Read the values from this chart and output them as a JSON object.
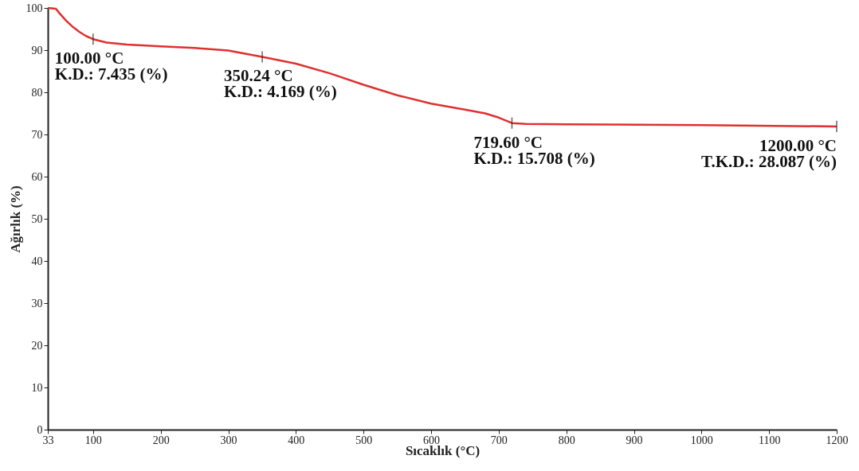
{
  "chart_data": {
    "type": "line",
    "xlabel": "Sıcaklık (°C)",
    "ylabel": "Ağırlık (%)",
    "x": [
      33,
      45,
      50,
      60,
      70,
      80,
      90,
      100,
      120,
      150,
      200,
      250,
      300,
      350.24,
      400,
      450,
      500,
      550,
      600,
      650,
      680,
      700,
      719.6,
      740,
      800,
      1000,
      1200
    ],
    "series": [
      {
        "color": "#e03030",
        "values": [
          100,
          99.8,
          98.8,
          97,
          95.5,
          94.3,
          93.3,
          92.6,
          91.8,
          91.3,
          90.9,
          90.5,
          89.9,
          88.4,
          86.8,
          84.5,
          81.8,
          79.3,
          77.3,
          75.9,
          75.0,
          74.0,
          72.7,
          72.5,
          72.4,
          72.2,
          71.9
        ]
      }
    ],
    "xlim": [
      33,
      1200
    ],
    "xticks": [
      33,
      100,
      200,
      300,
      400,
      500,
      600,
      700,
      800,
      900,
      1000,
      1100,
      1200
    ],
    "ylim": [
      0,
      100
    ],
    "yticks": [
      0,
      10,
      20,
      30,
      40,
      50,
      60,
      70,
      80,
      90,
      100
    ],
    "grid": false,
    "marker": "none",
    "line_style": "solid",
    "annotations": [
      {
        "text": "100.00 °C\nK.D.: 7.435 (%)",
        "x": 100,
        "y": 92.6
      },
      {
        "text": "350.24 °C\nK.D.: 4.169 (%)",
        "x": 350.24,
        "y": 88.4
      },
      {
        "text": "719.60 °C\nK.D.: 15.708 (%)",
        "x": 719.6,
        "y": 72.7
      },
      {
        "text": "1200.00 °C\nT.K.D.: 28.087 (%)",
        "x": 1200,
        "y": 71.9
      }
    ]
  }
}
